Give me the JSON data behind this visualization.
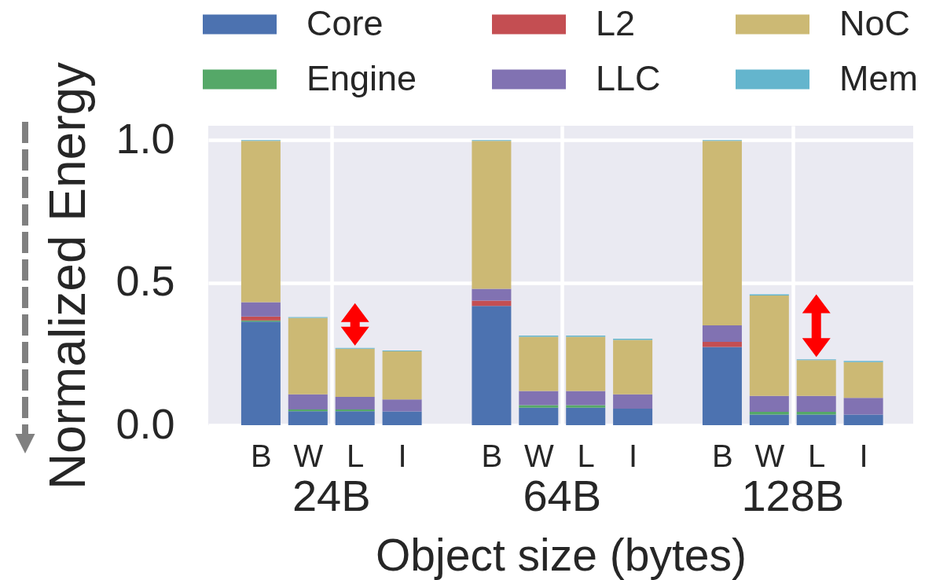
{
  "chart_data": {
    "type": "bar",
    "stacked": true,
    "xlabel": "Object size (bytes)",
    "ylabel": "Normalized Energy",
    "categories": [
      "B",
      "W",
      "L",
      "I",
      "B",
      "W",
      "L",
      "I",
      "B",
      "W",
      "L",
      "I"
    ],
    "annotations": [
      "24B",
      "64B",
      "128B"
    ],
    "series": [
      {
        "name": "Core",
        "color": "#4c72b0",
        "values": [
          0.363,
          0.049,
          0.049,
          0.048,
          0.418,
          0.061,
          0.061,
          0.058,
          0.274,
          0.037,
          0.037,
          0.037
        ]
      },
      {
        "name": "Engine",
        "color": "#55a868",
        "values": [
          0.004,
          0.006,
          0.006,
          null,
          null,
          0.009,
          0.009,
          null,
          null,
          0.01,
          0.01,
          null
        ]
      },
      {
        "name": "L2",
        "color": "#c44e52",
        "values": [
          0.014,
          null,
          null,
          null,
          0.019,
          null,
          null,
          null,
          0.018,
          null,
          null,
          null
        ]
      },
      {
        "name": "LLC",
        "color": "#8172b2",
        "values": [
          0.05,
          0.053,
          0.044,
          0.042,
          0.041,
          0.05,
          0.05,
          0.05,
          0.058,
          0.056,
          0.056,
          0.059
        ]
      },
      {
        "name": "NoC",
        "color": "#ccb974",
        "values": [
          0.566,
          0.268,
          0.169,
          0.169,
          0.519,
          0.19,
          0.19,
          0.191,
          0.647,
          0.352,
          0.125,
          0.125
        ]
      },
      {
        "name": "Mem",
        "color": "#64b5cd",
        "values": [
          0.003,
          0.003,
          0.003,
          0.003,
          0.003,
          0.004,
          0.004,
          0.004,
          0.003,
          0.004,
          0.003,
          0.004
        ]
      }
    ],
    "ylim": [
      0,
      1.05
    ],
    "yticks": [
      {
        "value": 0,
        "label": "0.0"
      },
      0.5,
      {
        "value": 1,
        "label": "1.0"
      }
    ],
    "grid": true,
    "legend": "top"
  }
}
